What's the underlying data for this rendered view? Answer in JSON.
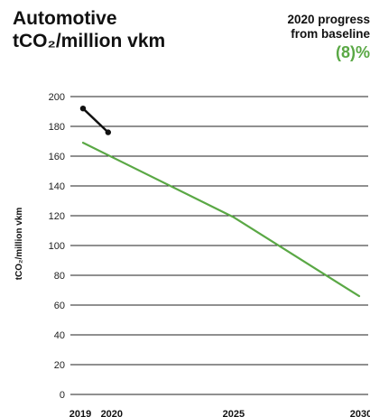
{
  "header": {
    "title_line1": "Automotive",
    "title_line2": "tCO₂/million vkm",
    "progress_line1": "2020 progress",
    "progress_line2": "from baseline",
    "progress_value": "(8)%"
  },
  "colors": {
    "target": "#5aa845",
    "actual": "#111111",
    "gridline": "#222222",
    "progress_value": "#5aa845"
  },
  "chart_data": {
    "type": "line",
    "xlabel": "",
    "ylabel": "tCO₂/million vkm",
    "xlim": [
      2019,
      2030
    ],
    "ylim": [
      0,
      200
    ],
    "yticks": [
      0,
      20,
      40,
      60,
      80,
      100,
      120,
      140,
      160,
      180,
      200
    ],
    "xtick_labels": [
      "2019",
      "2020",
      "2025",
      "2030"
    ],
    "grid": true,
    "series": [
      {
        "key": "actual",
        "x": [
          2019,
          2020
        ],
        "y": [
          192,
          176
        ],
        "markers": true
      },
      {
        "key": "target",
        "x": [
          2019,
          2025,
          2030
        ],
        "y": [
          169,
          119,
          66
        ],
        "markers": false
      }
    ]
  }
}
